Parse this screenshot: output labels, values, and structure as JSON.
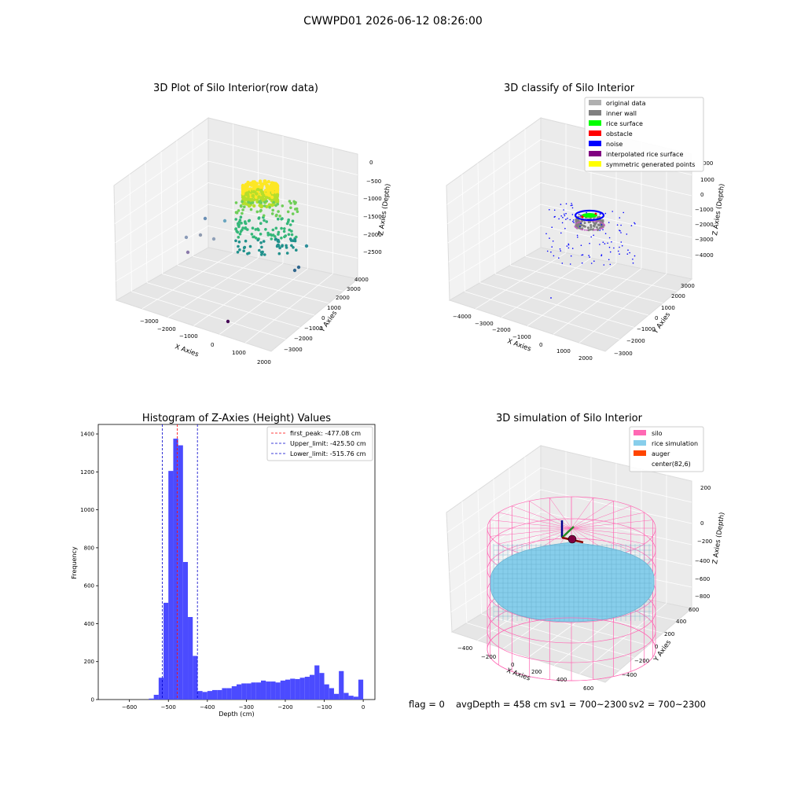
{
  "suptitle": "CWWPD01 2026-06-12 08:26:00",
  "status_line": {
    "flag": "flag = 0",
    "avg_depth": "avgDepth = 458 cm",
    "sv1": "sv1 = 700~2300",
    "sv2": "sv2 = 700~2300"
  },
  "colors": {
    "pane": "#f2f2f2",
    "pane_edge": "#d0d0d0",
    "hist_bar": "#4b4bff",
    "peak_line": "#ff0000",
    "limit_line": "#0000cc",
    "wire": "#ff69b4",
    "rice": "#87ceeb"
  },
  "chart_data": [
    {
      "type": "scatter",
      "projection": "3d",
      "title": "3D Plot of Silo Interior(row data)",
      "xlabel": "X Axies",
      "ylabel": "Y Axies",
      "zlabel": "Z Axies (Depth)",
      "xticks": [
        "−3000",
        "−2000",
        "−1000",
        "0",
        "1000",
        "2000"
      ],
      "yticks": [
        "4000",
        "3000",
        "2000",
        "1000",
        "0",
        "−1000",
        "−2000",
        "−3000"
      ],
      "zticks": [
        "0",
        "−500",
        "−1000",
        "−1500",
        "−2000",
        "−2500"
      ],
      "xlim": [
        -3500,
        2000
      ],
      "ylim": [
        -3500,
        4000
      ],
      "zlim": [
        -3000,
        200
      ],
      "colormap": "viridis",
      "points_description": "dense yellow cylinder of points near z = -500 to -1000 around x = 0, y = 0, sparser green/teal points down to z = -2700, a few outliers"
    },
    {
      "type": "scatter",
      "projection": "3d",
      "title": "3D classify of Silo Interior",
      "xlabel": "X Axies",
      "ylabel": "Y Axies",
      "zlabel": "Z Axies (Depth)",
      "xticks": [
        "−4000",
        "−3000",
        "−2000",
        "−1000",
        "0",
        "1000",
        "2000"
      ],
      "yticks": [
        "3000",
        "2000",
        "1000",
        "0",
        "−1000",
        "−2000",
        "−3000"
      ],
      "zticks": [
        "2000",
        "1000",
        "0",
        "−1000",
        "−2000",
        "−3000",
        "−4000"
      ],
      "zticks_first_partial": "000",
      "legend_position": "top-right",
      "legend": [
        {
          "label": "original data",
          "color": "#b0b0b0"
        },
        {
          "label": "inner wall",
          "color": "#808080"
        },
        {
          "label": "rice surface",
          "color": "#00ff00"
        },
        {
          "label": "obstacle",
          "color": "#ff0000"
        },
        {
          "label": "noise",
          "color": "#0000ff"
        },
        {
          "label": "interpolated rice surface",
          "color": "#800080"
        },
        {
          "label": "symmetric generated points",
          "color": "#ffff00"
        }
      ]
    },
    {
      "type": "bar",
      "title": "Histogram of Z-Axies (Height) Values",
      "xlabel": "Depth (cm)",
      "ylabel": "Frequency",
      "xlim": [
        -680,
        30
      ],
      "ylim": [
        0,
        1450
      ],
      "xticks": [
        -600,
        -500,
        -400,
        -300,
        -200,
        -100,
        0
      ],
      "xtick_labels": [
        "−600",
        "−500",
        "−400",
        "−300",
        "−200",
        "−100",
        "0"
      ],
      "yticks": [
        0,
        200,
        400,
        600,
        800,
        1000,
        1200,
        1400
      ],
      "bin_width": 12.5,
      "bins": [
        [
          -550,
          5
        ],
        [
          -537.5,
          25
        ],
        [
          -525,
          115
        ],
        [
          -512.5,
          510
        ],
        [
          -500,
          1205
        ],
        [
          -487.5,
          1375
        ],
        [
          -475,
          1340
        ],
        [
          -462.5,
          725
        ],
        [
          -450,
          435
        ],
        [
          -437.5,
          230
        ],
        [
          -425,
          45
        ],
        [
          -412.5,
          40
        ],
        [
          -400,
          45
        ],
        [
          -387.5,
          50
        ],
        [
          -375,
          50
        ],
        [
          -362.5,
          60
        ],
        [
          -350,
          60
        ],
        [
          -337.5,
          70
        ],
        [
          -325,
          80
        ],
        [
          -312.5,
          85
        ],
        [
          -300,
          85
        ],
        [
          -287.5,
          90
        ],
        [
          -275,
          90
        ],
        [
          -262.5,
          100
        ],
        [
          -250,
          95
        ],
        [
          -237.5,
          95
        ],
        [
          -225,
          90
        ],
        [
          -212.5,
          100
        ],
        [
          -200,
          105
        ],
        [
          -187.5,
          110
        ],
        [
          -175,
          108
        ],
        [
          -162.5,
          115
        ],
        [
          -150,
          120
        ],
        [
          -137.5,
          130
        ],
        [
          -125,
          180
        ],
        [
          -112.5,
          140
        ],
        [
          -100,
          80
        ],
        [
          -87.5,
          60
        ],
        [
          -75,
          30
        ],
        [
          -62.5,
          150
        ],
        [
          -50,
          35
        ],
        [
          -37.5,
          20
        ],
        [
          -25,
          15
        ],
        [
          -12.5,
          105
        ]
      ],
      "vlines": [
        {
          "label": "first_peak: -477.08 cm",
          "x": -477.08,
          "color": "#ff0000"
        },
        {
          "label": "Upper_limit: -425.50 cm",
          "x": -425.5,
          "color": "#0000cc"
        },
        {
          "label": "Lower_limit: -515.76 cm",
          "x": -515.76,
          "color": "#0000cc"
        }
      ],
      "legend_position": "top-right"
    },
    {
      "type": "surface",
      "projection": "3d",
      "title": "3D simulation of Silo Interior",
      "xlabel": "X Axies",
      "ylabel": "Y Axies",
      "zlabel": "Z Axies (Depth)",
      "xticks": [
        "−400",
        "−200",
        "0",
        "200",
        "400",
        "600"
      ],
      "yticks": [
        "600",
        "400",
        "200",
        "0",
        "−200",
        "−400"
      ],
      "zticks": [
        "200",
        "0",
        "−200",
        "−400",
        "−600",
        "−800"
      ],
      "legend_position": "top-right",
      "legend": [
        {
          "label": "silo",
          "color": "#ff69b4"
        },
        {
          "label": "rice simulation",
          "color": "#87ceeb"
        },
        {
          "label": "auger",
          "color": "#ff4500"
        },
        {
          "label": "center(82,6)",
          "color": ""
        }
      ]
    }
  ]
}
